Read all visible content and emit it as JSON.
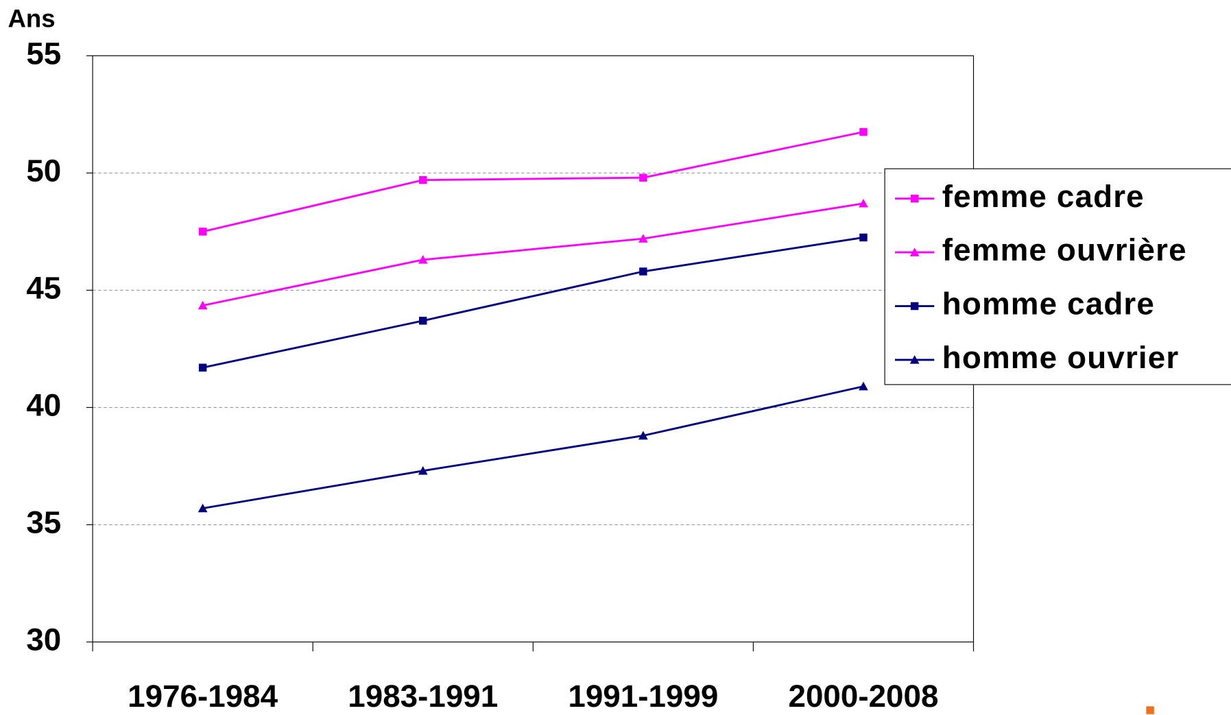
{
  "chart_data": {
    "type": "line",
    "y_label": "Ans",
    "categories": [
      "1976-1984",
      "1983-1991",
      "1991-1999",
      "2000-2008"
    ],
    "series": [
      {
        "name": "femme cadre",
        "color": "#ff00ff",
        "marker": "square",
        "values": [
          47.5,
          49.7,
          49.8,
          51.75
        ]
      },
      {
        "name": "femme ouvrière",
        "color": "#ff00ff",
        "marker": "triangle",
        "values": [
          44.35,
          46.3,
          47.2,
          48.7
        ]
      },
      {
        "name": "homme cadre",
        "color": "#000080",
        "marker": "square",
        "values": [
          41.7,
          43.7,
          45.8,
          47.25
        ]
      },
      {
        "name": "homme ouvrier",
        "color": "#000080",
        "marker": "triangle",
        "values": [
          35.7,
          37.3,
          38.8,
          40.9
        ]
      }
    ],
    "ylim": [
      30,
      55
    ],
    "yticks": [
      30,
      35,
      40,
      45,
      50,
      55
    ],
    "grid": true,
    "legend": "right"
  }
}
